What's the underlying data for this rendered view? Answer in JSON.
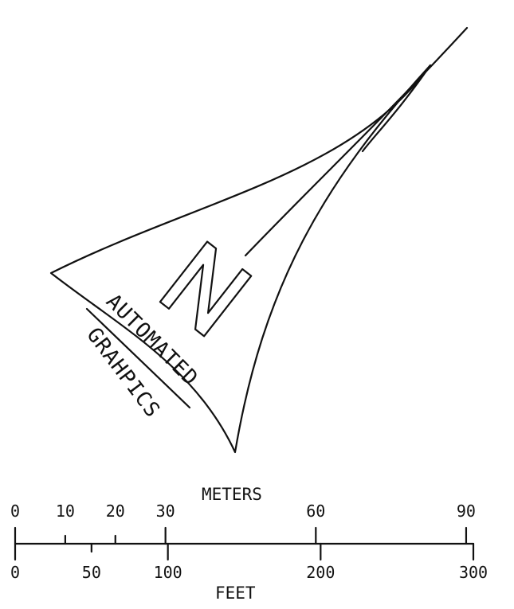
{
  "north_arrow": {
    "letter": "N",
    "logo_text_line1": "AUTOMATED",
    "logo_text_line2": "GRAHPICS"
  },
  "scale_bar": {
    "meters_label": "METERS",
    "feet_label": "FEET",
    "meters_ticks": [
      {
        "value": 0,
        "label": "0"
      },
      {
        "value": 10,
        "label": "10"
      },
      {
        "value": 20,
        "label": "20"
      },
      {
        "value": 30,
        "label": "30"
      },
      {
        "value": 60,
        "label": "60"
      },
      {
        "value": 90,
        "label": "90"
      }
    ],
    "feet_ticks": [
      {
        "value": 0,
        "label": "0"
      },
      {
        "value": 50,
        "label": "50"
      },
      {
        "value": 100,
        "label": "100"
      },
      {
        "value": 200,
        "label": "200"
      },
      {
        "value": 300,
        "label": "300"
      }
    ]
  }
}
